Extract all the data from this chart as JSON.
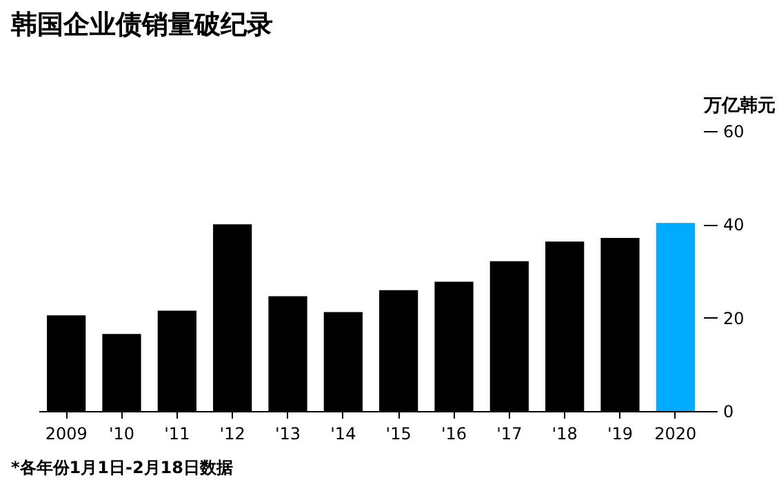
{
  "chart_data": {
    "type": "bar",
    "title": "韩国企业债销量破纪录",
    "ylabel": "万亿韩元",
    "categories": [
      "2009",
      "'10",
      "'11",
      "'12",
      "'13",
      "'14",
      "'15",
      "'16",
      "'17",
      "'18",
      "'19",
      "2020"
    ],
    "values": [
      20.5,
      16.5,
      21.5,
      40,
      24.6,
      21.2,
      25.9,
      27.7,
      32.1,
      36.3,
      37.1,
      40.3
    ],
    "colors": [
      "#000000",
      "#000000",
      "#000000",
      "#000000",
      "#000000",
      "#000000",
      "#000000",
      "#000000",
      "#000000",
      "#000000",
      "#000000",
      "#00aaff"
    ],
    "ylim": [
      0,
      60
    ],
    "yticks": [
      0,
      20,
      40,
      60
    ],
    "grid": false,
    "annotations": [
      "*各年份1月1日-2月18日数据"
    ]
  }
}
